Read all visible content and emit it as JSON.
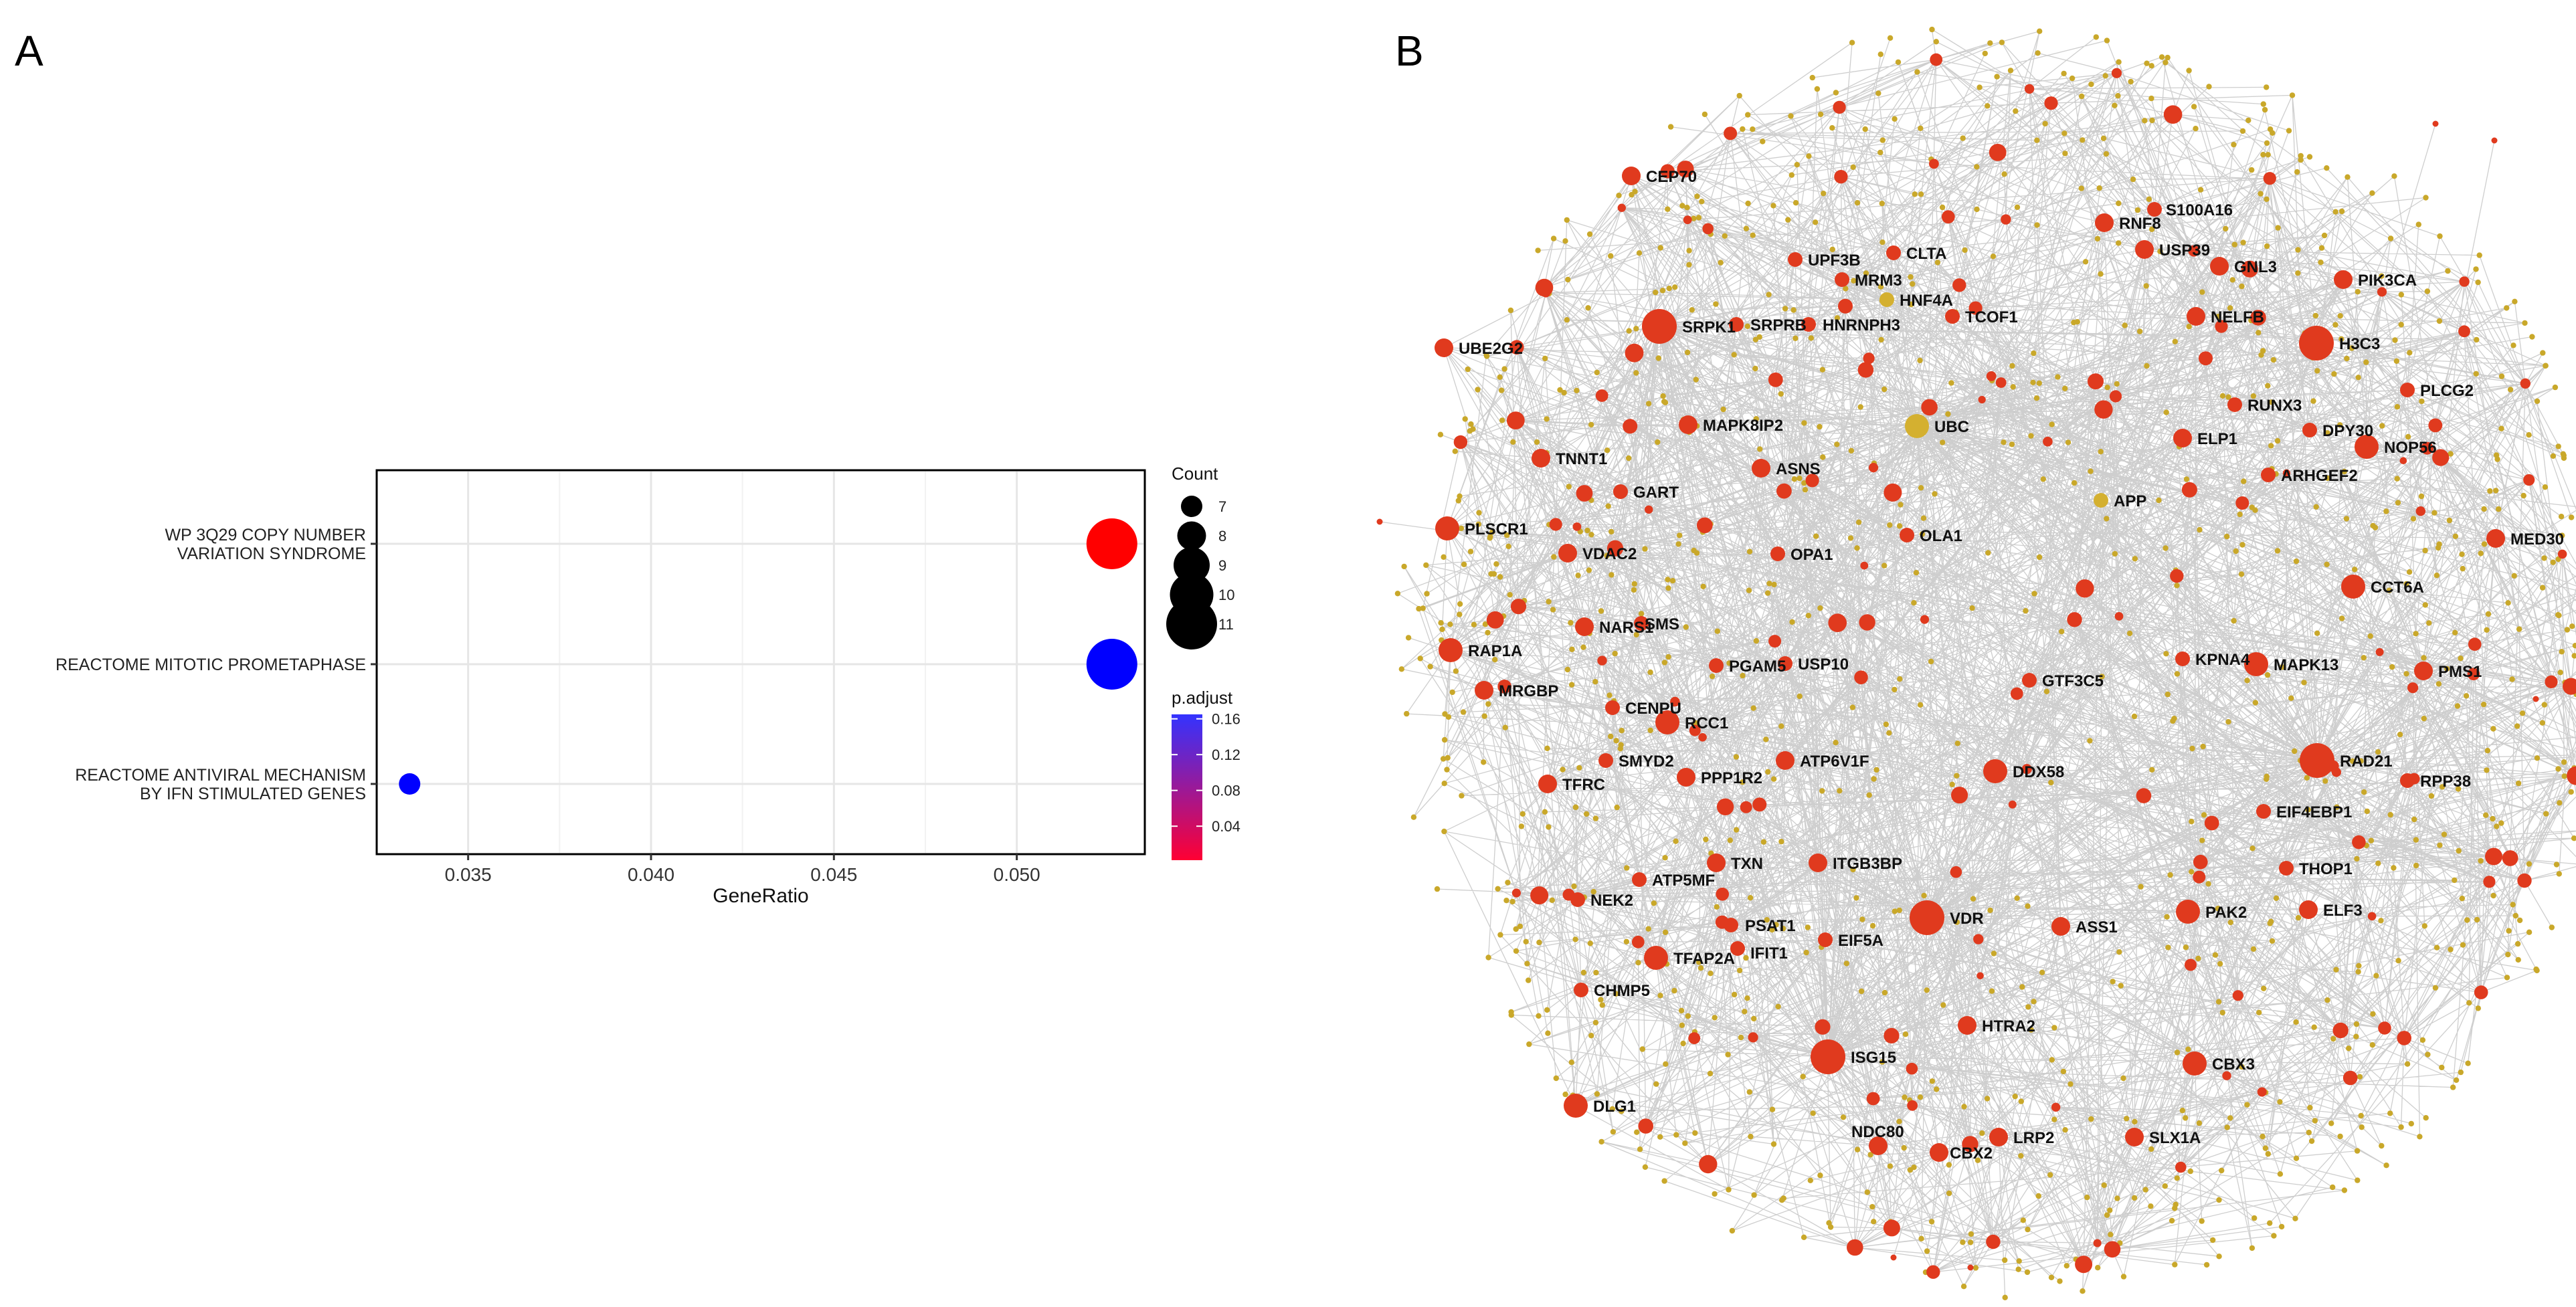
{
  "figure": {
    "panel_a_label": "A",
    "panel_b_label": "B"
  },
  "chart_data": [
    {
      "type": "scatter",
      "subtype": "dot-plot",
      "title": "",
      "xlabel": "GeneRatio",
      "ylabel": "",
      "xlim": [
        0.0325,
        0.0535
      ],
      "xticks": [
        0.035,
        0.04,
        0.045,
        0.05
      ],
      "xtick_labels": [
        "0.035",
        "0.040",
        "0.045",
        "0.050"
      ],
      "grid": true,
      "categories": [
        [
          "WP 3Q29 COPY NUMBER",
          "VARIATION SYNDROME"
        ],
        [
          "REACTOME MITOTIC PROMETAPHASE"
        ],
        [
          "REACTOME ANTIVIRAL MECHANISM",
          "BY IFN STIMULATED GENES"
        ]
      ],
      "points": [
        {
          "category_index": 0,
          "x": 0.0526,
          "count": 11,
          "p_adjust": 0.002,
          "color": "#ff0000"
        },
        {
          "category_index": 1,
          "x": 0.0526,
          "count": 11,
          "p_adjust": 0.165,
          "color": "#0000ff"
        },
        {
          "category_index": 2,
          "x": 0.0334,
          "count": 7,
          "p_adjust": 0.165,
          "color": "#0000ff"
        }
      ],
      "size_legend": {
        "title": "Count",
        "entries": [
          {
            "label": "7",
            "value": 7
          },
          {
            "label": "8",
            "value": 8
          },
          {
            "label": "9",
            "value": 9
          },
          {
            "label": "10",
            "value": 10
          },
          {
            "label": "11",
            "value": 11
          }
        ]
      },
      "color_legend": {
        "title": "p.adjust",
        "range": [
          0.002,
          0.165
        ],
        "low_color": "#ff0033",
        "high_color": "#3333ff",
        "tick_labels": [
          "0.16",
          "0.12",
          "0.08",
          "0.04"
        ],
        "tick_values": [
          0.16,
          0.12,
          0.08,
          0.04
        ]
      }
    },
    {
      "type": "network",
      "hub_color": "#e03a1e",
      "hub_color_alt": "#d4b030",
      "minor_node_color": "#c9a82a",
      "edge_color": "#a6a6a6",
      "labeled_nodes": [
        {
          "label": "CEP70",
          "size": 2,
          "color": "red"
        },
        {
          "label": "RNF8",
          "size": 2,
          "color": "red"
        },
        {
          "label": "S100A16",
          "size": 1,
          "color": "red"
        },
        {
          "label": "USP39",
          "size": 2,
          "color": "red"
        },
        {
          "label": "GNL3",
          "size": 2,
          "color": "red"
        },
        {
          "label": "PIK3CA",
          "size": 2,
          "color": "red"
        },
        {
          "label": "UPF3B",
          "size": 1,
          "color": "red"
        },
        {
          "label": "CLTA",
          "size": 1,
          "color": "red"
        },
        {
          "label": "MRM3",
          "size": 1,
          "color": "red"
        },
        {
          "label": "HNF4A",
          "size": 1,
          "color": "gold"
        },
        {
          "label": "TCOF1",
          "size": 1,
          "color": "red"
        },
        {
          "label": "NELFB",
          "size": 2,
          "color": "red"
        },
        {
          "label": "UBE2G2",
          "size": 2,
          "color": "red"
        },
        {
          "label": "SRPK1",
          "size": 4,
          "color": "red"
        },
        {
          "label": "SRPRB",
          "size": 1,
          "color": "red"
        },
        {
          "label": "HNRNPH3",
          "size": 1,
          "color": "red"
        },
        {
          "label": "H3C3",
          "size": 4,
          "color": "red"
        },
        {
          "label": "RUNX3",
          "size": 1,
          "color": "red"
        },
        {
          "label": "PLCG2",
          "size": 1,
          "color": "red"
        },
        {
          "label": "MAPK8IP2",
          "size": 2,
          "color": "red"
        },
        {
          "label": "UBC",
          "size": 3,
          "color": "gold"
        },
        {
          "label": "ELP1",
          "size": 2,
          "color": "red"
        },
        {
          "label": "DPY30",
          "size": 1,
          "color": "red"
        },
        {
          "label": "TNNT1",
          "size": 2,
          "color": "red"
        },
        {
          "label": "ASNS",
          "size": 2,
          "color": "red"
        },
        {
          "label": "NOP56",
          "size": 3,
          "color": "red"
        },
        {
          "label": "GART",
          "size": 1,
          "color": "red"
        },
        {
          "label": "ARHGEF2",
          "size": 1,
          "color": "red"
        },
        {
          "label": "APP",
          "size": 1,
          "color": "gold"
        },
        {
          "label": "PLSCR1",
          "size": 3,
          "color": "red"
        },
        {
          "label": "OLA1",
          "size": 1,
          "color": "red"
        },
        {
          "label": "MED30",
          "size": 2,
          "color": "red"
        },
        {
          "label": "VDAC2",
          "size": 2,
          "color": "red"
        },
        {
          "label": "OPA1",
          "size": 1,
          "color": "red"
        },
        {
          "label": "CCT6A",
          "size": 3,
          "color": "red"
        },
        {
          "label": "NARS1",
          "size": 2,
          "color": "red"
        },
        {
          "label": "SMS",
          "size": 1,
          "color": "red"
        },
        {
          "label": "RAP1A",
          "size": 3,
          "color": "red"
        },
        {
          "label": "KPNA4",
          "size": 1,
          "color": "red"
        },
        {
          "label": "MAPK13",
          "size": 3,
          "color": "red"
        },
        {
          "label": "PMS1",
          "size": 2,
          "color": "red"
        },
        {
          "label": "PGAM5",
          "size": 1,
          "color": "red"
        },
        {
          "label": "USP10",
          "size": 1,
          "color": "red"
        },
        {
          "label": "GTF3C5",
          "size": 1,
          "color": "red"
        },
        {
          "label": "MRGBP",
          "size": 2,
          "color": "red"
        },
        {
          "label": "CENPU",
          "size": 1,
          "color": "red"
        },
        {
          "label": "RCC1",
          "size": 3,
          "color": "red"
        },
        {
          "label": "RAD21",
          "size": 4,
          "color": "red"
        },
        {
          "label": "SMYD2",
          "size": 1,
          "color": "red"
        },
        {
          "label": "ATP6V1F",
          "size": 2,
          "color": "red"
        },
        {
          "label": "DDX58",
          "size": 3,
          "color": "red"
        },
        {
          "label": "TFRC",
          "size": 2,
          "color": "red"
        },
        {
          "label": "PPP1R2",
          "size": 2,
          "color": "red"
        },
        {
          "label": "RPP38",
          "size": 1,
          "color": "red"
        },
        {
          "label": "EIF4EBP1",
          "size": 1,
          "color": "red"
        },
        {
          "label": "TXN",
          "size": 2,
          "color": "red"
        },
        {
          "label": "ITGB3BP",
          "size": 2,
          "color": "red"
        },
        {
          "label": "THOP1",
          "size": 1,
          "color": "red"
        },
        {
          "label": "ATP5MF",
          "size": 1,
          "color": "red"
        },
        {
          "label": "NEK2",
          "size": 1,
          "color": "red"
        },
        {
          "label": "VDR",
          "size": 4,
          "color": "red"
        },
        {
          "label": "ASS1",
          "size": 2,
          "color": "red"
        },
        {
          "label": "PAK2",
          "size": 3,
          "color": "red"
        },
        {
          "label": "ELF3",
          "size": 2,
          "color": "red"
        },
        {
          "label": "PSAT1",
          "size": 1,
          "color": "red"
        },
        {
          "label": "IFIT1",
          "size": 1,
          "color": "red"
        },
        {
          "label": "EIF5A",
          "size": 1,
          "color": "red"
        },
        {
          "label": "TFAP2A",
          "size": 3,
          "color": "red"
        },
        {
          "label": "CHMP5",
          "size": 1,
          "color": "red"
        },
        {
          "label": "HTRA2",
          "size": 2,
          "color": "red"
        },
        {
          "label": "ISG15",
          "size": 4,
          "color": "red"
        },
        {
          "label": "CBX3",
          "size": 3,
          "color": "red"
        },
        {
          "label": "DLG1",
          "size": 3,
          "color": "red"
        },
        {
          "label": "NDC80",
          "size": 2,
          "color": "red"
        },
        {
          "label": "LRP2",
          "size": 2,
          "color": "red"
        },
        {
          "label": "SLX1A",
          "size": 2,
          "color": "red"
        },
        {
          "label": "CBX2",
          "size": 2,
          "color": "red"
        }
      ]
    }
  ]
}
